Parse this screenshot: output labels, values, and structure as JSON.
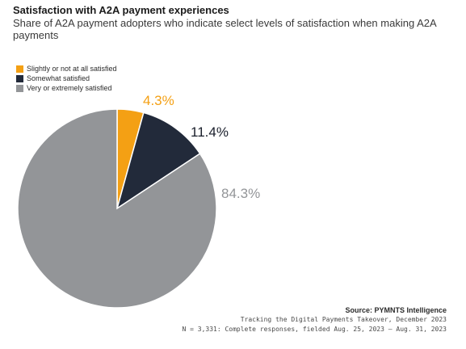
{
  "header": {
    "title": "Satisfaction with A2A payment experiences",
    "subtitle": "Share of A2A payment adopters who indicate select levels of satisfaction when making A2A payments"
  },
  "chart_data": {
    "type": "pie",
    "title": "Satisfaction with A2A payment experiences",
    "subtitle": "Share of A2A payment adopters who indicate select levels of satisfaction when making A2A payments",
    "legend_position": "top-left",
    "slices": [
      {
        "label": "Slightly or not at all satisfied",
        "value": 4.3,
        "display": "4.3%",
        "color": "#f4a014"
      },
      {
        "label": "Somewhat satisfied",
        "value": 11.4,
        "display": "11.4%",
        "color": "#222a3a"
      },
      {
        "label": "Very or extremely satisfied",
        "value": 84.3,
        "display": "84.3%",
        "color": "#939598"
      }
    ]
  },
  "footer": {
    "source": "Source: PYMNTS Intelligence",
    "report": "Tracking the Digital Payments Takeover, December 2023",
    "sample": "N = 3,331: Complete responses, fielded Aug. 25, 2023 – Aug. 31, 2023"
  }
}
